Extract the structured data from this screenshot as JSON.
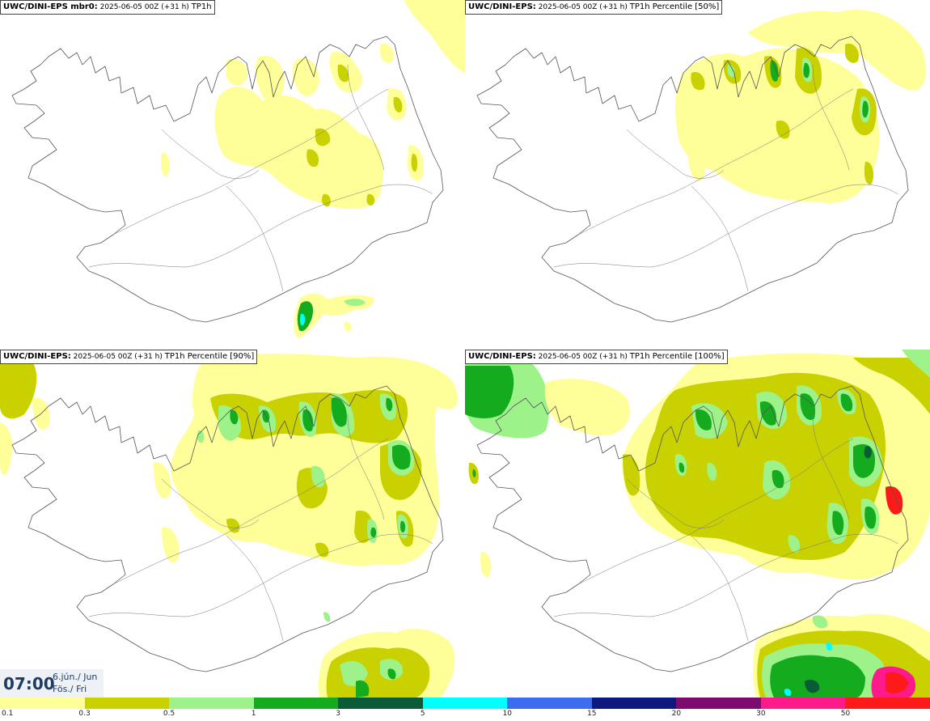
{
  "panels": [
    {
      "model": "UWC/DINI-EPS mbr0:",
      "run": "2025-06-05 00Z (+31 h)",
      "param": "TP1h"
    },
    {
      "model": "UWC/DINI-EPS:",
      "run": "2025-06-05 00Z (+31 h)",
      "param": "TP1h Percentile [50%]"
    },
    {
      "model": "UWC/DINI-EPS:",
      "run": "2025-06-05 00Z (+31 h)",
      "param": "TP1h Percentile [90%]"
    },
    {
      "model": "UWC/DINI-EPS:",
      "run": "2025-06-05 00Z (+31 h)",
      "param": "TP1h Percentile [100%]"
    }
  ],
  "valid_time": {
    "clock": "07:00",
    "date_line1": "6.jún./ Jun",
    "date_line2": "Fös./ Fri"
  },
  "legend": {
    "colors": [
      "#ffff9a",
      "#c9d200",
      "#9ef28a",
      "#14ab1e",
      "#0a5c37",
      "#00ffff",
      "#3c6cf0",
      "#0c1a80",
      "#7d0a6e",
      "#ff1a8c",
      "#ff1a1a"
    ],
    "ticks": [
      "0.1",
      "0.3",
      "0.5",
      "1",
      "3",
      "5",
      "10",
      "15",
      "20",
      "30",
      "50"
    ]
  },
  "colors": {
    "map_line": "#555555",
    "time_text": "#1f3d63"
  }
}
